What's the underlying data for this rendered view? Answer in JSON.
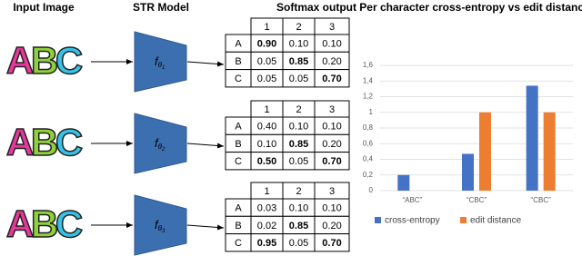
{
  "header": {
    "input": "Input Image",
    "model": "STR Model",
    "softmax": "Softmax output"
  },
  "rows": [
    {
      "image": [
        "A",
        "B",
        "C"
      ],
      "model": {
        "f": "f",
        "theta": "θ",
        "index": "1"
      },
      "table": {
        "columns": [
          "1",
          "2",
          "3"
        ],
        "rows": [
          [
            "A",
            "0.90",
            "0.10",
            "0.10"
          ],
          [
            "B",
            "0.05",
            "0.85",
            "0.20"
          ],
          [
            "C",
            "0.05",
            "0.05",
            "0.70"
          ]
        ],
        "bold": [
          [
            1
          ],
          [
            2
          ],
          [
            3
          ]
        ]
      }
    },
    {
      "image": [
        "A",
        "B",
        "C"
      ],
      "model": {
        "f": "f",
        "theta": "θ",
        "index": "2"
      },
      "table": {
        "columns": [
          "1",
          "2",
          "3"
        ],
        "rows": [
          [
            "A",
            "0.40",
            "0.10",
            "0.10"
          ],
          [
            "B",
            "0.10",
            "0.85",
            "0.20"
          ],
          [
            "C",
            "0.50",
            "0.05",
            "0.70"
          ]
        ],
        "bold": [
          [],
          [
            2
          ],
          [
            1,
            3
          ]
        ]
      }
    },
    {
      "image": [
        "A",
        "B",
        "C"
      ],
      "model": {
        "f": "f",
        "theta": "θ",
        "index": "3"
      },
      "table": {
        "columns": [
          "1",
          "2",
          "3"
        ],
        "rows": [
          [
            "A",
            "0.03",
            "0.10",
            "0.10"
          ],
          [
            "B",
            "0.02",
            "0.85",
            "0.20"
          ],
          [
            "C",
            "0.95",
            "0.05",
            "0.70"
          ]
        ],
        "bold": [
          [],
          [
            2
          ],
          [
            1,
            3
          ]
        ]
      }
    }
  ],
  "chart_data": {
    "type": "bar",
    "title": "Per character cross-entropy vs edit distance",
    "categories": [
      "“ABC”",
      "“CBC”",
      "“CBC”"
    ],
    "series": [
      {
        "name": "cross-entropy",
        "color": "#4472c4",
        "values": [
          0.2,
          0.47,
          1.34
        ]
      },
      {
        "name": "edit distance",
        "color": "#ed7d31",
        "values": [
          0,
          1,
          1
        ]
      }
    ],
    "ylim": [
      0,
      1.6
    ],
    "yticks": [
      0,
      {
        "value": 0.2,
        "label": "0,2"
      },
      {
        "value": 0.4,
        "label": "0,4"
      },
      {
        "value": 0.6,
        "label": "0,6"
      },
      {
        "value": 0.8,
        "label": "0,8"
      },
      1,
      {
        "value": 1.2,
        "label": "1,2"
      },
      {
        "value": 1.4,
        "label": "1,4"
      },
      {
        "value": 1.6,
        "label": "1,6"
      }
    ],
    "grid": true,
    "legend": "bottom"
  }
}
